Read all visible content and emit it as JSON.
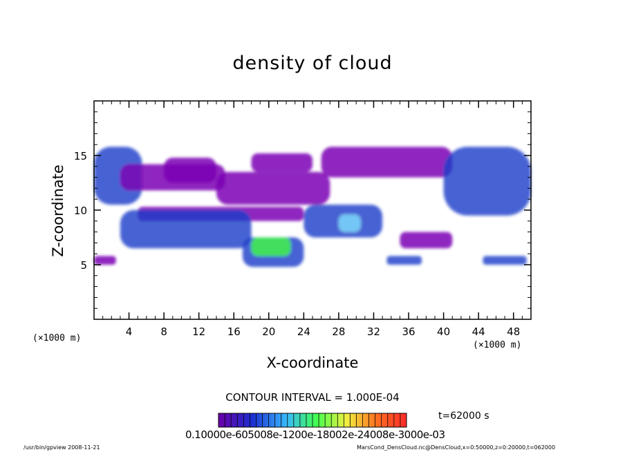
{
  "chart_data": {
    "type": "heatmap",
    "title": "density of cloud",
    "xlabel": "X-coordinate",
    "ylabel": "Z-coordinate",
    "x_unit_label": "(×1000 m)",
    "xlim": [
      0,
      50
    ],
    "ylim": [
      0,
      20
    ],
    "x_ticks": [
      4,
      8,
      12,
      16,
      20,
      24,
      28,
      32,
      36,
      40,
      44,
      48
    ],
    "y_ticks": [
      5,
      10,
      15
    ],
    "contour_interval_label": "CONTOUR INTERVAL = 1.000E-04",
    "time_label": "t=62000 s",
    "colorbar_tick_text": "0.10000e-605008e-1200e-18002e-24008e-3000e-03",
    "colorbar_range": [
      0.0001,
      0.003
    ],
    "colors": {
      "low": "#7b00b4",
      "mid": "#1a3cc8",
      "high": "#80e0ff",
      "peak": "#40ff40"
    },
    "cloud_regions": [
      {
        "x0": 0,
        "x1": 5.5,
        "z0": 10.5,
        "z1": 15.8,
        "level": "mid"
      },
      {
        "x0": 3,
        "x1": 15,
        "z0": 11.8,
        "z1": 14.2,
        "level": "low"
      },
      {
        "x0": 5,
        "x1": 24,
        "z0": 9.0,
        "z1": 10.3,
        "level": "low"
      },
      {
        "x0": 8,
        "x1": 14,
        "z0": 12.5,
        "z1": 14.8,
        "level": "low"
      },
      {
        "x0": 14,
        "x1": 27,
        "z0": 10.5,
        "z1": 13.5,
        "level": "low"
      },
      {
        "x0": 18,
        "x1": 25,
        "z0": 13.5,
        "z1": 15.2,
        "level": "low"
      },
      {
        "x0": 26,
        "x1": 41,
        "z0": 13.0,
        "z1": 15.8,
        "level": "low"
      },
      {
        "x0": 40,
        "x1": 50,
        "z0": 9.5,
        "z1": 15.8,
        "level": "mid"
      },
      {
        "x0": 3,
        "x1": 18,
        "z0": 6.5,
        "z1": 10.0,
        "level": "mid"
      },
      {
        "x0": 17,
        "x1": 24,
        "z0": 4.8,
        "z1": 7.5,
        "level": "mid"
      },
      {
        "x0": 24,
        "x1": 33,
        "z0": 7.5,
        "z1": 10.5,
        "level": "mid"
      },
      {
        "x0": 35,
        "x1": 41,
        "z0": 6.5,
        "z1": 8.0,
        "level": "low"
      },
      {
        "x0": 0,
        "x1": 2.5,
        "z0": 5.0,
        "z1": 5.8,
        "level": "low"
      },
      {
        "x0": 33.5,
        "x1": 37.5,
        "z0": 5.0,
        "z1": 5.8,
        "level": "mid"
      },
      {
        "x0": 44.5,
        "x1": 49.5,
        "z0": 5.0,
        "z1": 5.8,
        "level": "mid"
      },
      {
        "x0": 28,
        "x1": 30.5,
        "z0": 8.0,
        "z1": 9.6,
        "level": "high"
      },
      {
        "x0": 18,
        "x1": 22.5,
        "z0": 5.8,
        "z1": 7.5,
        "level": "peak"
      }
    ]
  },
  "footer": {
    "left": "/usr/bin/gpview   2008-11-21",
    "right": "MarsCond_DensCloud.nc@DensCloud,x=0:50000,z=0:20000,t=062000"
  }
}
